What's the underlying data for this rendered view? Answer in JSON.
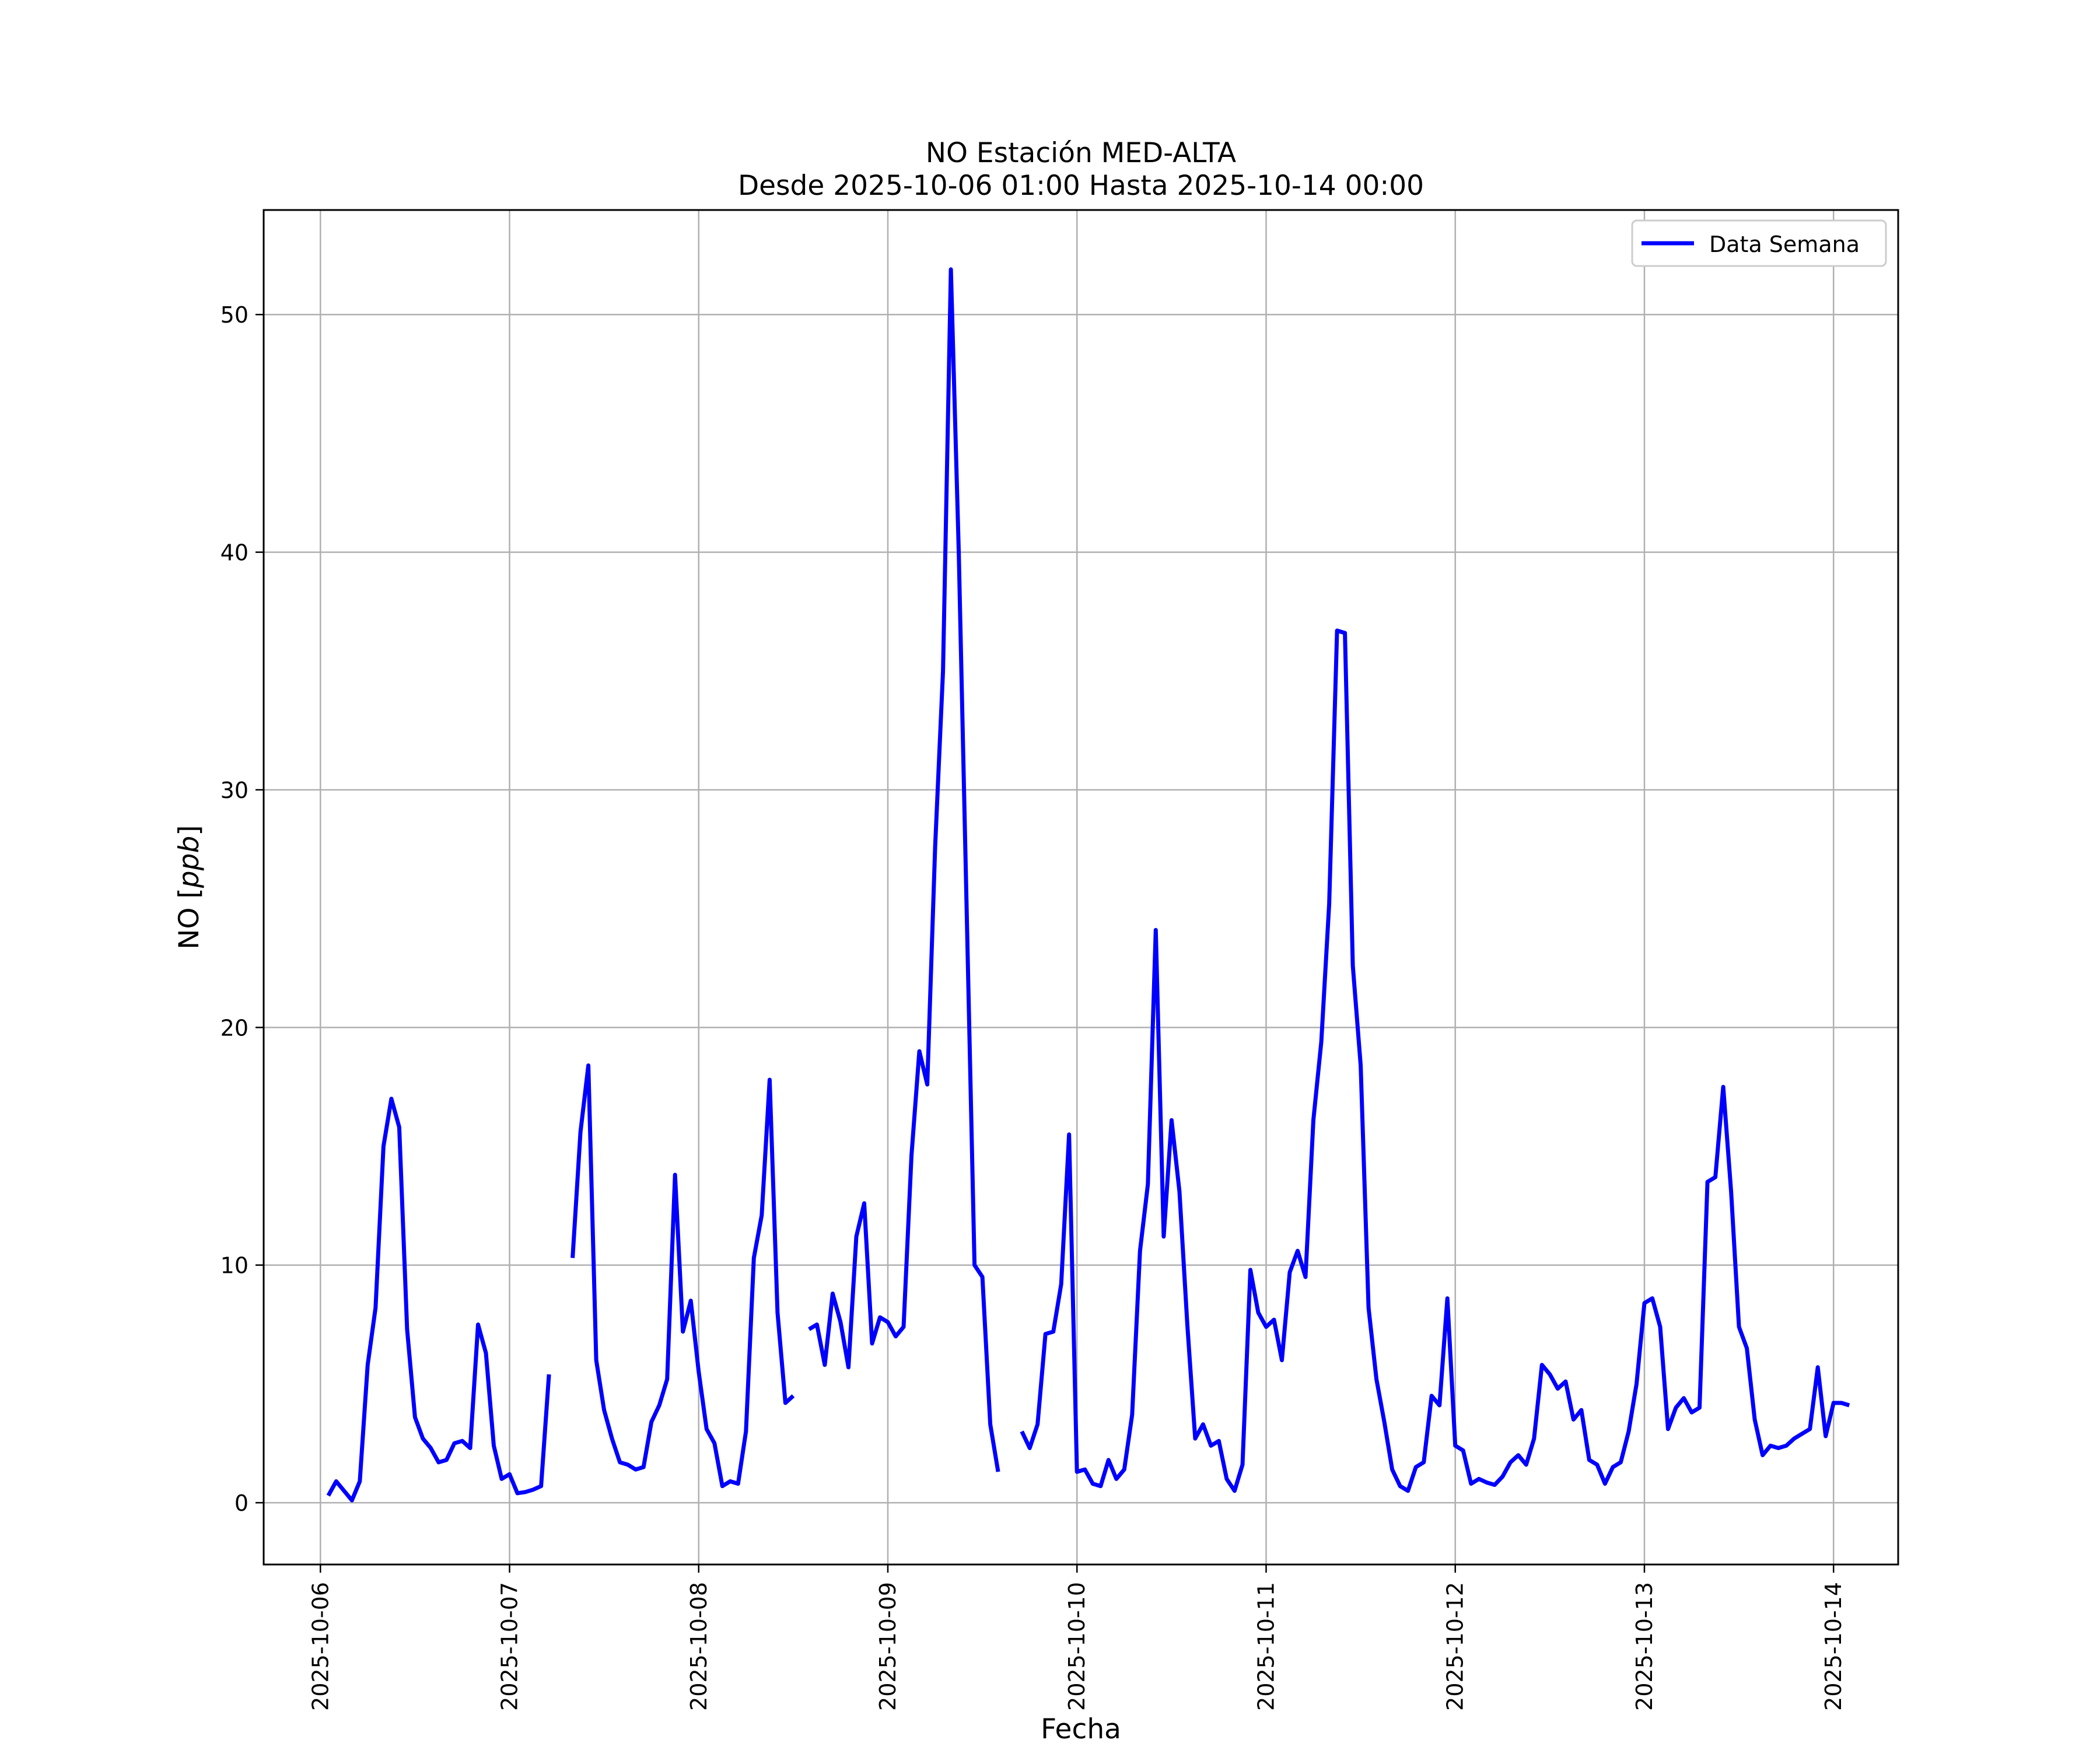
{
  "chart_data": {
    "type": "line",
    "title": "NO Estación MED-ALTA",
    "subtitle": "Desde 2025-10-06 01:00 Hasta 2025-10-14 00:00",
    "xlabel": "Fecha",
    "ylabel": "NO [ppb]",
    "ylabel_prefix": "NO [",
    "ylabel_unit": "ppb",
    "ylabel_suffix": "]",
    "xlim": [
      "2025-10-05 16:48",
      "2025-10-14 08:12"
    ],
    "ylim": [
      -2.6,
      54.4
    ],
    "x_ticks": [
      "2025-10-06",
      "2025-10-07",
      "2025-10-08",
      "2025-10-09",
      "2025-10-10",
      "2025-10-11",
      "2025-10-12",
      "2025-10-13",
      "2025-10-14"
    ],
    "y_ticks": [
      0,
      10,
      20,
      30,
      40,
      50
    ],
    "grid": true,
    "legend_position": "top-right",
    "series": [
      {
        "name": "Data Semana",
        "color": "#0000ff",
        "start": "2025-10-06 01:00",
        "interval_hours": 1,
        "values": [
          0.3,
          0.9,
          0.5,
          0.1,
          0.9,
          5.8,
          8.2,
          15.0,
          17.0,
          15.8,
          7.3,
          3.6,
          2.7,
          2.3,
          1.7,
          1.8,
          2.5,
          2.6,
          2.3,
          7.5,
          6.3,
          2.4,
          1.0,
          1.2,
          0.4,
          0.45,
          0.55,
          0.7,
          5.4,
          null,
          null,
          10.3,
          15.6,
          18.4,
          6.0,
          3.9,
          2.7,
          1.7,
          1.6,
          1.4,
          1.5,
          3.4,
          4.1,
          5.2,
          13.8,
          7.2,
          8.5,
          5.5,
          3.1,
          2.5,
          0.7,
          0.9,
          0.8,
          3.0,
          10.3,
          12.1,
          17.8,
          8.0,
          4.2,
          4.5,
          null,
          7.3,
          7.5,
          5.8,
          8.8,
          7.6,
          5.7,
          11.2,
          12.6,
          6.7,
          7.8,
          7.6,
          7.0,
          7.4,
          14.6,
          19.0,
          17.6,
          27.6,
          35.0,
          51.9,
          40.0,
          25.0,
          10.0,
          9.5,
          3.3,
          1.3,
          null,
          null,
          3.0,
          2.3,
          3.3,
          7.1,
          7.2,
          9.2,
          15.5,
          1.3,
          1.4,
          0.8,
          0.7,
          1.8,
          1.0,
          1.4,
          3.7,
          10.6,
          13.4,
          24.1,
          11.2,
          16.1,
          13.1,
          7.5,
          2.7,
          3.3,
          2.4,
          2.6,
          1.0,
          0.5,
          1.6,
          9.8,
          8.0,
          7.4,
          7.7,
          6.0,
          9.7,
          10.6,
          9.5,
          16.1,
          19.4,
          25.2,
          36.7,
          36.6,
          22.6,
          18.4,
          8.2,
          5.2,
          3.4,
          1.4,
          0.7,
          0.5,
          1.5,
          1.7,
          4.5,
          4.1,
          8.6,
          2.4,
          2.2,
          0.8,
          1.0,
          0.85,
          0.75,
          1.1,
          1.7,
          2.0,
          1.6,
          2.7,
          5.8,
          5.4,
          4.8,
          5.1,
          3.5,
          3.9,
          1.8,
          1.6,
          0.8,
          1.5,
          1.7,
          3.0,
          5.0,
          8.4,
          8.6,
          7.4,
          3.1,
          4.0,
          4.4,
          3.8,
          4.0,
          13.5,
          13.7,
          17.5,
          13.1,
          7.4,
          6.5,
          3.5,
          2.0,
          2.4,
          2.3,
          2.4,
          2.7,
          2.9,
          3.1,
          5.7,
          2.8,
          4.2,
          4.2,
          4.1
        ]
      }
    ]
  }
}
